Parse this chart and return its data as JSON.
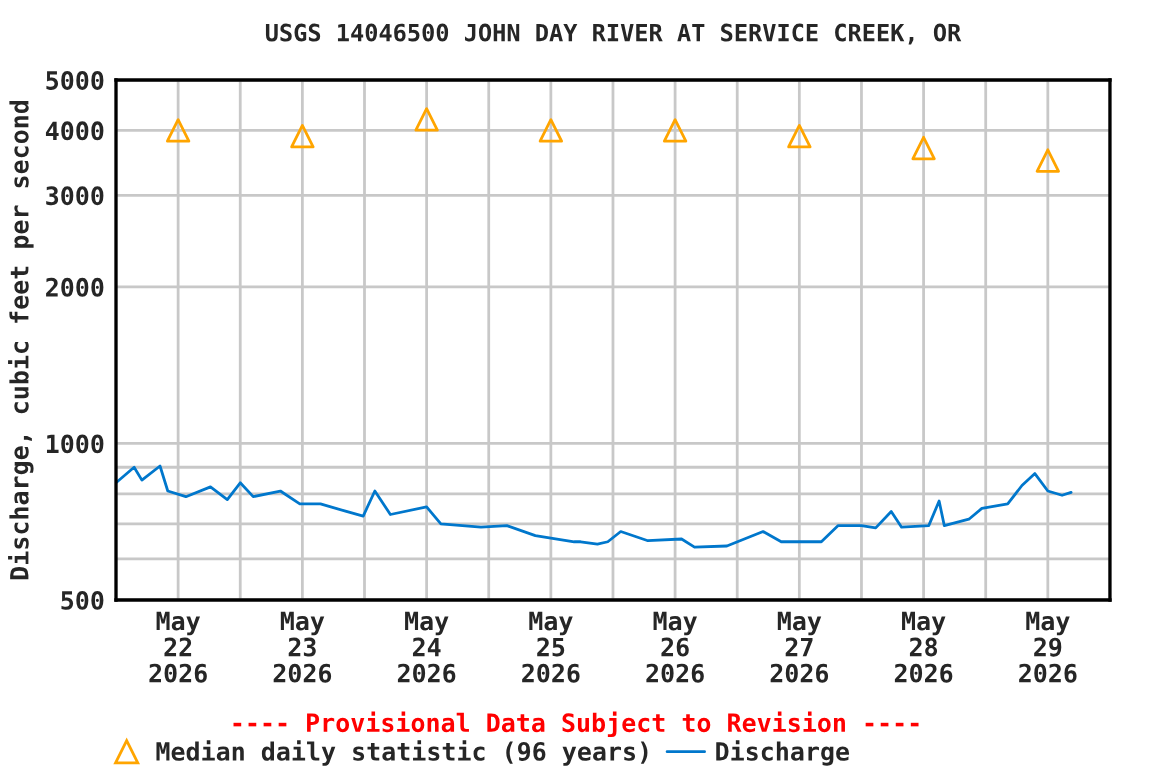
{
  "chart_data": {
    "type": "line",
    "title": "USGS 14046500 JOHN DAY RIVER AT SERVICE CREEK, OR",
    "ylabel": "Discharge, cubic feet per second",
    "annotations": [
      "---- Provisional Data Subject to Revision ----"
    ],
    "log": "y",
    "grid": true,
    "legend": "bottom",
    "tick_labels": [
      "x",
      "y"
    ],
    "xlim": [
      "2026-05-22T00:00",
      "2026-05-30T00:00"
    ],
    "xticks": [
      {
        "value": "2026-05-22T12:00",
        "label": "May\n22\n2026"
      },
      {
        "value": "2026-05-23T00:00",
        "label": null
      },
      {
        "value": "2026-05-23T12:00",
        "label": "May\n23\n2026"
      },
      {
        "value": "2026-05-24T00:00",
        "label": null
      },
      {
        "value": "2026-05-24T12:00",
        "label": "May\n24\n2026"
      },
      {
        "value": "2026-05-25T00:00",
        "label": null
      },
      {
        "value": "2026-05-25T12:00",
        "label": "May\n25\n2026"
      },
      {
        "value": "2026-05-26T00:00",
        "label": null
      },
      {
        "value": "2026-05-26T12:00",
        "label": "May\n26\n2026"
      },
      {
        "value": "2026-05-27T00:00",
        "label": null
      },
      {
        "value": "2026-05-27T12:00",
        "label": "May\n27\n2026"
      },
      {
        "value": "2026-05-28T00:00",
        "label": null
      },
      {
        "value": "2026-05-28T12:00",
        "label": "May\n28\n2026"
      },
      {
        "value": "2026-05-29T00:00",
        "label": null
      },
      {
        "value": "2026-05-29T12:00",
        "label": "May\n29\n2026"
      }
    ],
    "ylim": [
      500,
      5000
    ],
    "yticks": [
      500,
      {
        "value": 600,
        "label": null
      },
      {
        "value": 700,
        "label": null
      },
      {
        "value": 800,
        "label": null
      },
      {
        "value": 900,
        "label": null
      },
      1000,
      2000,
      3000,
      4000,
      5000
    ],
    "series": [
      {
        "name": "Median daily statistic (96 years)",
        "type": "scatter",
        "marker": "triangle",
        "color": "#ffa500",
        "x": [
          "2026-05-22T12:00",
          "2026-05-23T12:00",
          "2026-05-24T12:00",
          "2026-05-25T12:00",
          "2026-05-26T12:00",
          "2026-05-27T12:00",
          "2026-05-28T12:00",
          "2026-05-29T12:00"
        ],
        "values": [
          4000,
          3900,
          4200,
          4000,
          4000,
          3900,
          3700,
          3500
        ]
      },
      {
        "name": "Discharge",
        "marker": "none",
        "color": "#0077cc",
        "x": [
          "2026-05-22T00:00",
          "2026-05-22T03:30",
          "2026-05-22T05:00",
          "2026-05-22T08:30",
          "2026-05-22T10:00",
          "2026-05-22T13:30",
          "2026-05-22T18:15",
          "2026-05-22T21:30",
          "2026-05-23T00:00",
          "2026-05-23T02:30",
          "2026-05-23T07:45",
          "2026-05-23T11:30",
          "2026-05-23T15:30",
          "2026-05-23T20:30",
          "2026-05-23T23:45",
          "2026-05-24T02:00",
          "2026-05-24T05:00",
          "2026-05-24T12:00",
          "2026-05-24T14:45",
          "2026-05-24T22:30",
          "2026-05-25T03:30",
          "2026-05-25T09:00",
          "2026-05-25T16:30",
          "2026-05-25T17:45",
          "2026-05-25T21:00",
          "2026-05-25T23:00",
          "2026-05-26T01:30",
          "2026-05-26T06:45",
          "2026-05-26T13:15",
          "2026-05-26T15:45",
          "2026-05-26T22:00",
          "2026-05-27T05:00",
          "2026-05-27T08:30",
          "2026-05-27T16:15",
          "2026-05-27T19:30",
          "2026-05-28T00:00",
          "2026-05-28T02:45",
          "2026-05-28T05:45",
          "2026-05-28T07:45",
          "2026-05-28T13:00",
          "2026-05-28T15:00",
          "2026-05-28T16:00",
          "2026-05-28T20:45",
          "2026-05-28T23:15",
          "2026-05-29T04:15",
          "2026-05-29T07:00",
          "2026-05-29T09:30",
          "2026-05-29T12:00",
          "2026-05-29T14:45",
          "2026-05-29T16:30"
        ],
        "values": [
          840,
          900,
          850,
          905,
          810,
          790,
          825,
          780,
          840,
          790,
          810,
          765,
          765,
          740,
          725,
          810,
          730,
          755,
          700,
          690,
          695,
          665,
          647,
          647,
          640,
          647,
          677,
          650,
          655,
          632,
          635,
          677,
          647,
          647,
          695,
          695,
          688,
          740,
          690,
          695,
          775,
          695,
          715,
          750,
          765,
          830,
          875,
          810,
          795,
          805
        ]
      }
    ]
  }
}
